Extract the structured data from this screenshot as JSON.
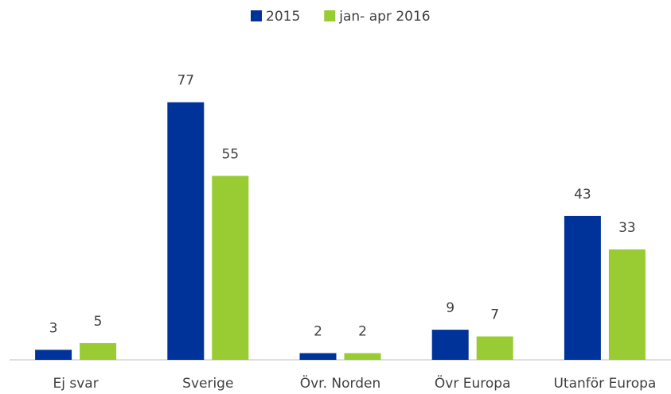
{
  "chart_data": {
    "type": "bar",
    "categories": [
      "Ej svar",
      "Sverige",
      "Övr. Norden",
      "Övr Europa",
      "Utanför Europa"
    ],
    "series": [
      {
        "name": "2015",
        "color": "#003399",
        "values": [
          3,
          77,
          2,
          9,
          43
        ]
      },
      {
        "name": "jan- apr 2016",
        "color": "#99cc33",
        "values": [
          5,
          55,
          2,
          7,
          33
        ]
      }
    ],
    "ylim": [
      0,
      90
    ],
    "legend": "top"
  }
}
